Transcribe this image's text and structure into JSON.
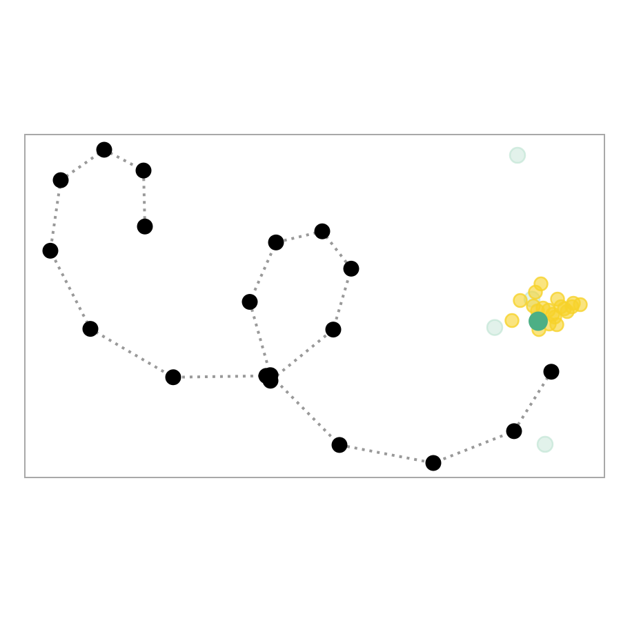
{
  "chart_data": {
    "type": "scatter",
    "title": "",
    "xlabel": "",
    "ylabel": "",
    "axes_visible": false,
    "frame_color": "#a8a8a8",
    "xlim": [
      0,
      840
    ],
    "ylim": [
      0,
      496
    ],
    "series": [
      {
        "role": "path",
        "style": "dotted-line-with-markers",
        "color": "#000000",
        "line_color": "#999999",
        "points": [
          [
            174,
            363
          ],
          [
            172,
            444
          ],
          [
            115,
            474
          ],
          [
            52,
            430
          ],
          [
            37,
            328
          ],
          [
            95,
            215
          ],
          [
            215,
            145
          ],
          [
            350,
            147
          ],
          [
            356,
            140
          ],
          [
            447,
            214
          ],
          [
            473,
            302
          ],
          [
            431,
            356
          ],
          [
            364,
            340
          ],
          [
            326,
            254
          ],
          [
            356,
            148
          ],
          [
            456,
            47
          ],
          [
            592,
            21
          ],
          [
            709,
            67
          ],
          [
            763,
            153
          ]
        ]
      },
      {
        "role": "cloud",
        "style": "scatter",
        "color": "#f6d22a",
        "opacity": 0.6,
        "points": [
          [
            748,
            280
          ],
          [
            718,
            256
          ],
          [
            737,
            248
          ],
          [
            759,
            242
          ],
          [
            772,
            258
          ],
          [
            795,
            252
          ],
          [
            782,
            244
          ],
          [
            805,
            250
          ],
          [
            706,
            227
          ],
          [
            760,
            222
          ],
          [
            771,
            221
          ],
          [
            745,
            214
          ],
          [
            793,
            247
          ],
          [
            751,
            245
          ],
          [
            786,
            240
          ],
          [
            743,
            241
          ],
          [
            768,
            232
          ],
          [
            740,
            268
          ],
          [
            777,
            247
          ],
          [
            765,
            236
          ]
        ]
      },
      {
        "role": "faint",
        "style": "scatter",
        "color": "#bfe3d3",
        "opacity": 0.45,
        "points": [
          [
            714,
            466
          ],
          [
            681,
            217
          ],
          [
            754,
            48
          ],
          [
            735,
            258
          ],
          [
            744,
            230
          ]
        ]
      },
      {
        "role": "focus",
        "style": "scatter",
        "color": "#4daf85",
        "opacity": 1,
        "points": [
          [
            744,
            226
          ]
        ]
      }
    ]
  }
}
